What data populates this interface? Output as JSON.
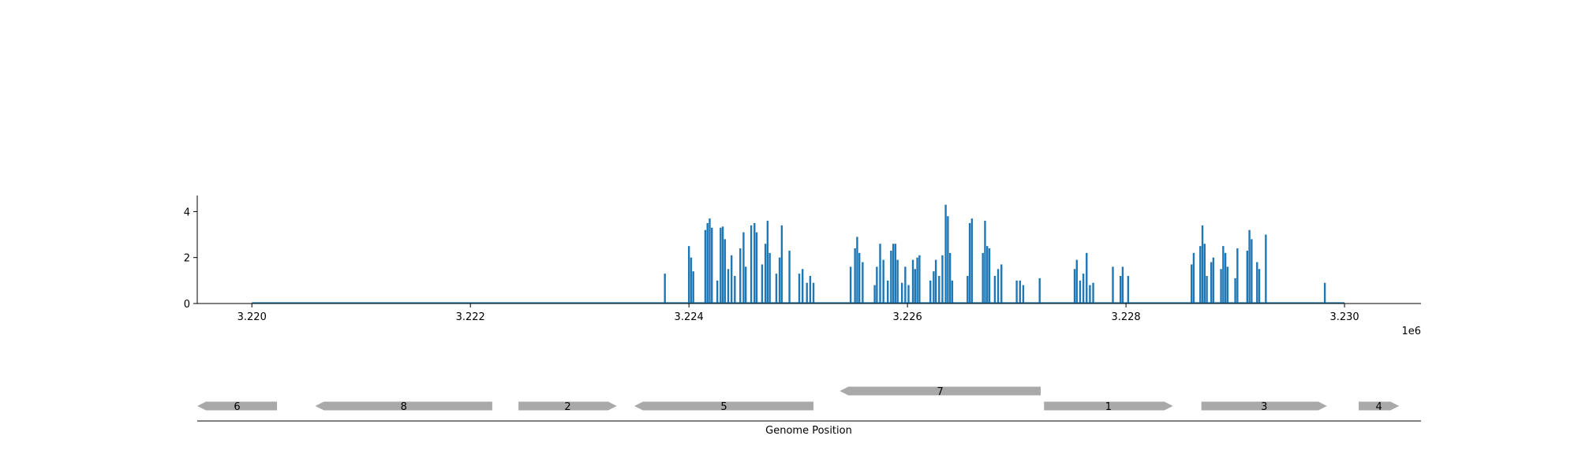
{
  "chart_data": [
    {
      "type": "area",
      "title": "",
      "xlabel": "",
      "ylabel": "",
      "x_offset_label": "1e6",
      "xlim": [
        3219500,
        3230700
      ],
      "ylim": [
        0,
        4.7
      ],
      "xticks": [
        3220000,
        3222000,
        3224000,
        3226000,
        3228000,
        3230000
      ],
      "xtick_labels": [
        "3.220",
        "3.222",
        "3.224",
        "3.226",
        "3.228",
        "3.230"
      ],
      "yticks": [
        0,
        2,
        4
      ],
      "ytick_labels": [
        "0",
        "2",
        "4"
      ],
      "grid": false,
      "legend": "none",
      "line_color": "#1f77b4",
      "coverage_range": [
        3220000,
        3230000
      ],
      "peaks": [
        {
          "x": 3223780,
          "y": 1.3
        },
        {
          "x": 3224000,
          "y": 2.5
        },
        {
          "x": 3224020,
          "y": 2.0
        },
        {
          "x": 3224040,
          "y": 1.4
        },
        {
          "x": 3224150,
          "y": 3.2
        },
        {
          "x": 3224170,
          "y": 3.5
        },
        {
          "x": 3224190,
          "y": 3.7
        },
        {
          "x": 3224210,
          "y": 3.3
        },
        {
          "x": 3224260,
          "y": 1.0
        },
        {
          "x": 3224290,
          "y": 3.3
        },
        {
          "x": 3224310,
          "y": 3.35
        },
        {
          "x": 3224330,
          "y": 2.8
        },
        {
          "x": 3224360,
          "y": 1.5
        },
        {
          "x": 3224390,
          "y": 2.1
        },
        {
          "x": 3224420,
          "y": 1.2
        },
        {
          "x": 3224470,
          "y": 2.4
        },
        {
          "x": 3224500,
          "y": 3.1
        },
        {
          "x": 3224520,
          "y": 1.6
        },
        {
          "x": 3224570,
          "y": 3.4
        },
        {
          "x": 3224600,
          "y": 3.5
        },
        {
          "x": 3224620,
          "y": 3.1
        },
        {
          "x": 3224670,
          "y": 1.7
        },
        {
          "x": 3224700,
          "y": 2.6
        },
        {
          "x": 3224720,
          "y": 3.6
        },
        {
          "x": 3224740,
          "y": 2.2
        },
        {
          "x": 3224800,
          "y": 1.3
        },
        {
          "x": 3224830,
          "y": 2.0
        },
        {
          "x": 3224850,
          "y": 3.4
        },
        {
          "x": 3224920,
          "y": 2.3
        },
        {
          "x": 3225010,
          "y": 1.3
        },
        {
          "x": 3225040,
          "y": 1.5
        },
        {
          "x": 3225080,
          "y": 0.9
        },
        {
          "x": 3225110,
          "y": 1.2
        },
        {
          "x": 3225140,
          "y": 0.9
        },
        {
          "x": 3225480,
          "y": 1.6
        },
        {
          "x": 3225520,
          "y": 2.4
        },
        {
          "x": 3225540,
          "y": 2.9
        },
        {
          "x": 3225560,
          "y": 2.2
        },
        {
          "x": 3225590,
          "y": 1.8
        },
        {
          "x": 3225700,
          "y": 0.8
        },
        {
          "x": 3225720,
          "y": 1.6
        },
        {
          "x": 3225750,
          "y": 2.6
        },
        {
          "x": 3225780,
          "y": 1.9
        },
        {
          "x": 3225820,
          "y": 1.0
        },
        {
          "x": 3225850,
          "y": 2.3
        },
        {
          "x": 3225870,
          "y": 2.6
        },
        {
          "x": 3225890,
          "y": 2.6
        },
        {
          "x": 3225910,
          "y": 1.9
        },
        {
          "x": 3225950,
          "y": 0.9
        },
        {
          "x": 3225980,
          "y": 1.6
        },
        {
          "x": 3226010,
          "y": 0.8
        },
        {
          "x": 3226050,
          "y": 1.9
        },
        {
          "x": 3226070,
          "y": 1.5
        },
        {
          "x": 3226090,
          "y": 2.0
        },
        {
          "x": 3226110,
          "y": 2.1
        },
        {
          "x": 3226210,
          "y": 1.0
        },
        {
          "x": 3226240,
          "y": 1.4
        },
        {
          "x": 3226260,
          "y": 1.9
        },
        {
          "x": 3226290,
          "y": 1.2
        },
        {
          "x": 3226320,
          "y": 2.1
        },
        {
          "x": 3226350,
          "y": 4.3
        },
        {
          "x": 3226370,
          "y": 3.8
        },
        {
          "x": 3226390,
          "y": 2.2
        },
        {
          "x": 3226410,
          "y": 1.0
        },
        {
          "x": 3226550,
          "y": 1.2
        },
        {
          "x": 3226570,
          "y": 3.5
        },
        {
          "x": 3226590,
          "y": 3.7
        },
        {
          "x": 3226690,
          "y": 2.2
        },
        {
          "x": 3226710,
          "y": 3.6
        },
        {
          "x": 3226730,
          "y": 2.5
        },
        {
          "x": 3226750,
          "y": 2.4
        },
        {
          "x": 3226800,
          "y": 1.2
        },
        {
          "x": 3226830,
          "y": 1.5
        },
        {
          "x": 3226860,
          "y": 1.7
        },
        {
          "x": 3227000,
          "y": 1.0
        },
        {
          "x": 3227030,
          "y": 1.0
        },
        {
          "x": 3227060,
          "y": 0.8
        },
        {
          "x": 3227210,
          "y": 1.1
        },
        {
          "x": 3227530,
          "y": 1.5
        },
        {
          "x": 3227550,
          "y": 1.9
        },
        {
          "x": 3227580,
          "y": 1.0
        },
        {
          "x": 3227610,
          "y": 1.3
        },
        {
          "x": 3227640,
          "y": 2.2
        },
        {
          "x": 3227670,
          "y": 0.8
        },
        {
          "x": 3227700,
          "y": 0.9
        },
        {
          "x": 3227880,
          "y": 1.6
        },
        {
          "x": 3227950,
          "y": 1.2
        },
        {
          "x": 3227970,
          "y": 1.6
        },
        {
          "x": 3228020,
          "y": 1.2
        },
        {
          "x": 3228600,
          "y": 1.7
        },
        {
          "x": 3228620,
          "y": 2.2
        },
        {
          "x": 3228680,
          "y": 2.5
        },
        {
          "x": 3228700,
          "y": 3.4
        },
        {
          "x": 3228720,
          "y": 2.6
        },
        {
          "x": 3228740,
          "y": 1.2
        },
        {
          "x": 3228780,
          "y": 1.8
        },
        {
          "x": 3228800,
          "y": 2.0
        },
        {
          "x": 3228870,
          "y": 1.5
        },
        {
          "x": 3228890,
          "y": 2.5
        },
        {
          "x": 3228910,
          "y": 2.2
        },
        {
          "x": 3228930,
          "y": 1.6
        },
        {
          "x": 3229000,
          "y": 1.1
        },
        {
          "x": 3229020,
          "y": 2.4
        },
        {
          "x": 3229110,
          "y": 2.3
        },
        {
          "x": 3229130,
          "y": 3.2
        },
        {
          "x": 3229150,
          "y": 2.8
        },
        {
          "x": 3229200,
          "y": 1.8
        },
        {
          "x": 3229220,
          "y": 1.5
        },
        {
          "x": 3229280,
          "y": 3.0
        },
        {
          "x": 3229820,
          "y": 0.9
        }
      ]
    },
    {
      "type": "table",
      "title": "",
      "xlabel": "Genome Position",
      "gene_color": "#a9a9a9",
      "genes": [
        {
          "label": "6",
          "start": 3219500,
          "end": 3220230,
          "strand": "-",
          "row": 0
        },
        {
          "label": "8",
          "start": 3220580,
          "end": 3222200,
          "strand": "-",
          "row": 0
        },
        {
          "label": "2",
          "start": 3222440,
          "end": 3223340,
          "strand": "+",
          "row": 0
        },
        {
          "label": "5",
          "start": 3223500,
          "end": 3225140,
          "strand": "-",
          "row": 0
        },
        {
          "label": "7",
          "start": 3225380,
          "end": 3227220,
          "strand": "-",
          "row": 1
        },
        {
          "label": "1",
          "start": 3227250,
          "end": 3228430,
          "strand": "+",
          "row": 0
        },
        {
          "label": "3",
          "start": 3228690,
          "end": 3229840,
          "strand": "+",
          "row": 0
        },
        {
          "label": "4",
          "start": 3230130,
          "end": 3230500,
          "strand": "+",
          "row": 0
        }
      ]
    }
  ]
}
